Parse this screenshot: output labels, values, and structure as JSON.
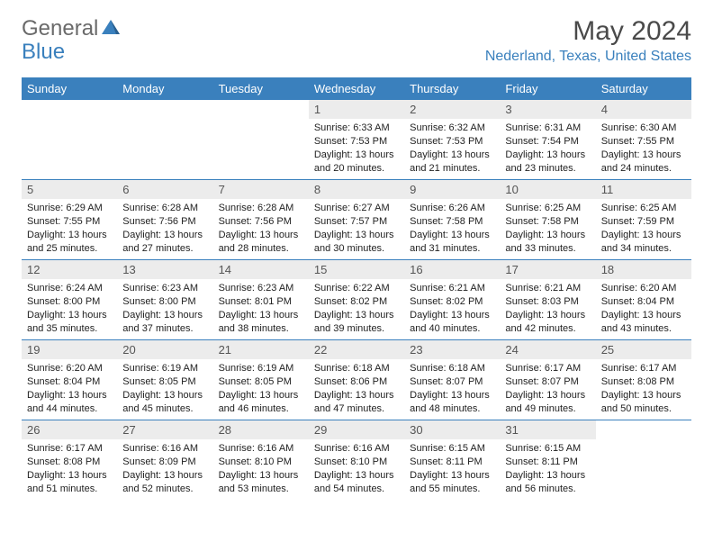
{
  "logo": {
    "text_left": "General",
    "text_right": "Blue",
    "color_gray": "#6a6a6a",
    "color_blue": "#3a80bd"
  },
  "header": {
    "month_title": "May 2024",
    "location": "Nederland, Texas, United States"
  },
  "colors": {
    "header_bg": "#3a80bd",
    "daynum_bg": "#ececec",
    "border": "#3a80bd"
  },
  "weekdays": [
    "Sunday",
    "Monday",
    "Tuesday",
    "Wednesday",
    "Thursday",
    "Friday",
    "Saturday"
  ],
  "weeks": [
    [
      {
        "empty": true
      },
      {
        "empty": true
      },
      {
        "empty": true
      },
      {
        "num": "1",
        "sunrise": "Sunrise: 6:33 AM",
        "sunset": "Sunset: 7:53 PM",
        "daylight1": "Daylight: 13 hours",
        "daylight2": "and 20 minutes."
      },
      {
        "num": "2",
        "sunrise": "Sunrise: 6:32 AM",
        "sunset": "Sunset: 7:53 PM",
        "daylight1": "Daylight: 13 hours",
        "daylight2": "and 21 minutes."
      },
      {
        "num": "3",
        "sunrise": "Sunrise: 6:31 AM",
        "sunset": "Sunset: 7:54 PM",
        "daylight1": "Daylight: 13 hours",
        "daylight2": "and 23 minutes."
      },
      {
        "num": "4",
        "sunrise": "Sunrise: 6:30 AM",
        "sunset": "Sunset: 7:55 PM",
        "daylight1": "Daylight: 13 hours",
        "daylight2": "and 24 minutes."
      }
    ],
    [
      {
        "num": "5",
        "sunrise": "Sunrise: 6:29 AM",
        "sunset": "Sunset: 7:55 PM",
        "daylight1": "Daylight: 13 hours",
        "daylight2": "and 25 minutes."
      },
      {
        "num": "6",
        "sunrise": "Sunrise: 6:28 AM",
        "sunset": "Sunset: 7:56 PM",
        "daylight1": "Daylight: 13 hours",
        "daylight2": "and 27 minutes."
      },
      {
        "num": "7",
        "sunrise": "Sunrise: 6:28 AM",
        "sunset": "Sunset: 7:56 PM",
        "daylight1": "Daylight: 13 hours",
        "daylight2": "and 28 minutes."
      },
      {
        "num": "8",
        "sunrise": "Sunrise: 6:27 AM",
        "sunset": "Sunset: 7:57 PM",
        "daylight1": "Daylight: 13 hours",
        "daylight2": "and 30 minutes."
      },
      {
        "num": "9",
        "sunrise": "Sunrise: 6:26 AM",
        "sunset": "Sunset: 7:58 PM",
        "daylight1": "Daylight: 13 hours",
        "daylight2": "and 31 minutes."
      },
      {
        "num": "10",
        "sunrise": "Sunrise: 6:25 AM",
        "sunset": "Sunset: 7:58 PM",
        "daylight1": "Daylight: 13 hours",
        "daylight2": "and 33 minutes."
      },
      {
        "num": "11",
        "sunrise": "Sunrise: 6:25 AM",
        "sunset": "Sunset: 7:59 PM",
        "daylight1": "Daylight: 13 hours",
        "daylight2": "and 34 minutes."
      }
    ],
    [
      {
        "num": "12",
        "sunrise": "Sunrise: 6:24 AM",
        "sunset": "Sunset: 8:00 PM",
        "daylight1": "Daylight: 13 hours",
        "daylight2": "and 35 minutes."
      },
      {
        "num": "13",
        "sunrise": "Sunrise: 6:23 AM",
        "sunset": "Sunset: 8:00 PM",
        "daylight1": "Daylight: 13 hours",
        "daylight2": "and 37 minutes."
      },
      {
        "num": "14",
        "sunrise": "Sunrise: 6:23 AM",
        "sunset": "Sunset: 8:01 PM",
        "daylight1": "Daylight: 13 hours",
        "daylight2": "and 38 minutes."
      },
      {
        "num": "15",
        "sunrise": "Sunrise: 6:22 AM",
        "sunset": "Sunset: 8:02 PM",
        "daylight1": "Daylight: 13 hours",
        "daylight2": "and 39 minutes."
      },
      {
        "num": "16",
        "sunrise": "Sunrise: 6:21 AM",
        "sunset": "Sunset: 8:02 PM",
        "daylight1": "Daylight: 13 hours",
        "daylight2": "and 40 minutes."
      },
      {
        "num": "17",
        "sunrise": "Sunrise: 6:21 AM",
        "sunset": "Sunset: 8:03 PM",
        "daylight1": "Daylight: 13 hours",
        "daylight2": "and 42 minutes."
      },
      {
        "num": "18",
        "sunrise": "Sunrise: 6:20 AM",
        "sunset": "Sunset: 8:04 PM",
        "daylight1": "Daylight: 13 hours",
        "daylight2": "and 43 minutes."
      }
    ],
    [
      {
        "num": "19",
        "sunrise": "Sunrise: 6:20 AM",
        "sunset": "Sunset: 8:04 PM",
        "daylight1": "Daylight: 13 hours",
        "daylight2": "and 44 minutes."
      },
      {
        "num": "20",
        "sunrise": "Sunrise: 6:19 AM",
        "sunset": "Sunset: 8:05 PM",
        "daylight1": "Daylight: 13 hours",
        "daylight2": "and 45 minutes."
      },
      {
        "num": "21",
        "sunrise": "Sunrise: 6:19 AM",
        "sunset": "Sunset: 8:05 PM",
        "daylight1": "Daylight: 13 hours",
        "daylight2": "and 46 minutes."
      },
      {
        "num": "22",
        "sunrise": "Sunrise: 6:18 AM",
        "sunset": "Sunset: 8:06 PM",
        "daylight1": "Daylight: 13 hours",
        "daylight2": "and 47 minutes."
      },
      {
        "num": "23",
        "sunrise": "Sunrise: 6:18 AM",
        "sunset": "Sunset: 8:07 PM",
        "daylight1": "Daylight: 13 hours",
        "daylight2": "and 48 minutes."
      },
      {
        "num": "24",
        "sunrise": "Sunrise: 6:17 AM",
        "sunset": "Sunset: 8:07 PM",
        "daylight1": "Daylight: 13 hours",
        "daylight2": "and 49 minutes."
      },
      {
        "num": "25",
        "sunrise": "Sunrise: 6:17 AM",
        "sunset": "Sunset: 8:08 PM",
        "daylight1": "Daylight: 13 hours",
        "daylight2": "and 50 minutes."
      }
    ],
    [
      {
        "num": "26",
        "sunrise": "Sunrise: 6:17 AM",
        "sunset": "Sunset: 8:08 PM",
        "daylight1": "Daylight: 13 hours",
        "daylight2": "and 51 minutes."
      },
      {
        "num": "27",
        "sunrise": "Sunrise: 6:16 AM",
        "sunset": "Sunset: 8:09 PM",
        "daylight1": "Daylight: 13 hours",
        "daylight2": "and 52 minutes."
      },
      {
        "num": "28",
        "sunrise": "Sunrise: 6:16 AM",
        "sunset": "Sunset: 8:10 PM",
        "daylight1": "Daylight: 13 hours",
        "daylight2": "and 53 minutes."
      },
      {
        "num": "29",
        "sunrise": "Sunrise: 6:16 AM",
        "sunset": "Sunset: 8:10 PM",
        "daylight1": "Daylight: 13 hours",
        "daylight2": "and 54 minutes."
      },
      {
        "num": "30",
        "sunrise": "Sunrise: 6:15 AM",
        "sunset": "Sunset: 8:11 PM",
        "daylight1": "Daylight: 13 hours",
        "daylight2": "and 55 minutes."
      },
      {
        "num": "31",
        "sunrise": "Sunrise: 6:15 AM",
        "sunset": "Sunset: 8:11 PM",
        "daylight1": "Daylight: 13 hours",
        "daylight2": "and 56 minutes."
      },
      {
        "empty": true
      }
    ]
  ]
}
